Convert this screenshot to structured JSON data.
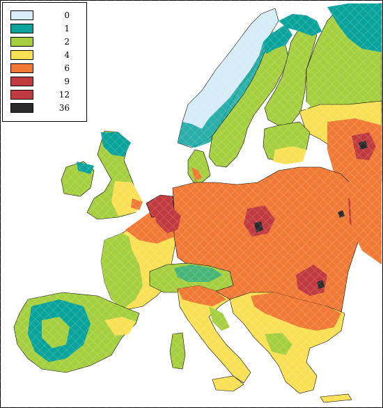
{
  "legend": {
    "items": [
      {
        "label": "0",
        "color": "#d6ecf6"
      },
      {
        "label": "1",
        "color": "#0aa39c"
      },
      {
        "label": "2",
        "color": "#a6cf40"
      },
      {
        "label": "4",
        "color": "#f9e055"
      },
      {
        "label": "6",
        "color": "#f07a35"
      },
      {
        "label": "9",
        "color": "#c03a3f"
      },
      {
        "label": "12",
        "color": "#c03a3f"
      },
      {
        "label": "36",
        "color": "#2b2b2b"
      }
    ]
  },
  "map": {
    "sea_color": "#ffffff",
    "border_color": "#000000"
  }
}
